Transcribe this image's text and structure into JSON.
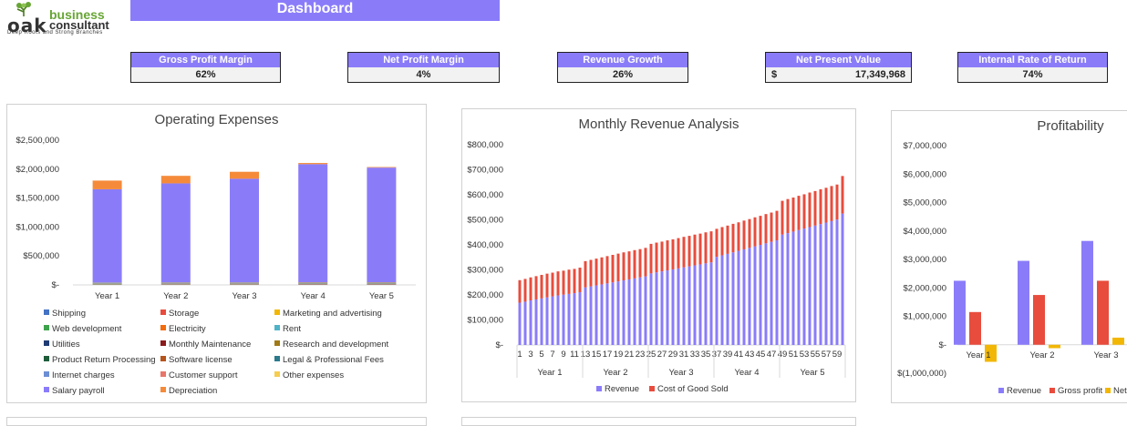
{
  "brand": {
    "logo_top": "oak",
    "logo_business": "business",
    "logo_consultant": "consultant",
    "logo_tagline": "Deep Roots and Strong Branches"
  },
  "header": {
    "title": "Dashboard",
    "accent_color": "#8a7cf9"
  },
  "kpis": {
    "gross_profit_margin": {
      "label": "Gross Profit Margin",
      "value": "62%"
    },
    "net_profit_margin": {
      "label": "Net Profit Margin",
      "value": "4%"
    },
    "revenue_growth": {
      "label": "Revenue Growth",
      "value": "26%"
    },
    "npv": {
      "label": "Net Present Value",
      "currency": "$",
      "value": "17,349,968"
    },
    "irr": {
      "label": "Internal Rate of Return",
      "value": "74%"
    }
  },
  "chart_data": [
    {
      "type": "bar",
      "stacked": true,
      "title": "Operating Expenses",
      "categories": [
        "Year 1",
        "Year 2",
        "Year 3",
        "Year 4",
        "Year 5"
      ],
      "y_ticks": [
        "$2,500,000",
        "$2,000,000",
        "$1,500,000",
        "$1,000,000",
        "$500,000",
        "$-"
      ],
      "ylim": [
        0,
        2500000
      ],
      "series": [
        {
          "name": "Shipping",
          "color": "#4472c4",
          "values": [
            5000,
            6000,
            6000,
            7000,
            7000
          ]
        },
        {
          "name": "Storage",
          "color": "#e84c3d",
          "values": [
            4000,
            5000,
            5000,
            6000,
            6000
          ]
        },
        {
          "name": "Marketing and advertising",
          "color": "#f2b705",
          "values": [
            3000,
            3000,
            3000,
            3000,
            3000
          ]
        },
        {
          "name": "Web development",
          "color": "#3fa34d",
          "values": [
            4000,
            4000,
            4000,
            4000,
            4000
          ]
        },
        {
          "name": "Electricity",
          "color": "#f26c0d",
          "values": [
            3000,
            3000,
            3000,
            3000,
            3000
          ]
        },
        {
          "name": "Rent",
          "color": "#4fb3c8",
          "values": [
            6000,
            6000,
            6000,
            6000,
            6000
          ]
        },
        {
          "name": "Utilities",
          "color": "#1f3b73",
          "values": [
            2000,
            2000,
            2000,
            2000,
            2000
          ]
        },
        {
          "name": "Monthly Maintenance",
          "color": "#8b1a1a",
          "values": [
            2000,
            2000,
            2000,
            2000,
            2000
          ]
        },
        {
          "name": "Research and development",
          "color": "#a07a16",
          "values": [
            3000,
            3000,
            3000,
            3000,
            3000
          ]
        },
        {
          "name": "Product Return Processing",
          "color": "#1e5c3a",
          "values": [
            2000,
            2000,
            2000,
            2000,
            2000
          ]
        },
        {
          "name": "Software license",
          "color": "#b5541c",
          "values": [
            2000,
            2000,
            2000,
            2000,
            2000
          ]
        },
        {
          "name": "Legal & Professional Fees",
          "color": "#2a7a8c",
          "values": [
            2000,
            2000,
            2000,
            2000,
            2000
          ]
        },
        {
          "name": "Internet charges",
          "color": "#6c8ed4",
          "values": [
            1000,
            1000,
            1000,
            1000,
            1000
          ]
        },
        {
          "name": "Customer support",
          "color": "#e8766a",
          "values": [
            2000,
            2000,
            2000,
            2000,
            2000
          ]
        },
        {
          "name": "Other expenses",
          "color": "#f5cd4f",
          "values": [
            1000,
            1000,
            1000,
            1000,
            1000
          ]
        },
        {
          "name": "Salary payroll",
          "color": "#8a7cf9",
          "values": [
            1610000,
            1710000,
            1790000,
            2040000,
            1980000
          ]
        },
        {
          "name": "Depreciation",
          "color": "#f58b3a",
          "values": [
            150000,
            130000,
            120000,
            20000,
            10000
          ]
        }
      ]
    },
    {
      "type": "bar",
      "stacked": true,
      "title": "Monthly Revenue Analysis",
      "x_labels": [
        "1",
        "3",
        "5",
        "7",
        "9",
        "11",
        "13",
        "15",
        "17",
        "19",
        "21",
        "23",
        "25",
        "27",
        "29",
        "31",
        "33",
        "35",
        "37",
        "39",
        "41",
        "43",
        "45",
        "47",
        "49",
        "51",
        "53",
        "55",
        "57",
        "59"
      ],
      "groups": [
        "Year 1",
        "Year 2",
        "Year 3",
        "Year 4",
        "Year 5"
      ],
      "y_ticks": [
        "$800,000",
        "$700,000",
        "$600,000",
        "$500,000",
        "$400,000",
        "$300,000",
        "$200,000",
        "$100,000",
        "$-"
      ],
      "ylim": [
        0,
        800000
      ],
      "series": [
        {
          "name": "Revenue",
          "color": "#8a7cf9",
          "values": [
            169000,
            173000,
            178000,
            182000,
            186000,
            190000,
            194000,
            198000,
            201000,
            204000,
            207000,
            211000,
            230000,
            234000,
            238000,
            242000,
            246000,
            250000,
            254000,
            258000,
            262000,
            266000,
            270000,
            274000,
            286000,
            290000,
            294000,
            298000,
            302000,
            306000,
            310000,
            314000,
            318000,
            322000,
            326000,
            330000,
            352000,
            358000,
            364000,
            370000,
            376000,
            382000,
            388000,
            394000,
            400000,
            406000,
            412000,
            418000,
            441000,
            447000,
            453000,
            459000,
            465000,
            471000,
            477000,
            483000,
            489000,
            495000,
            501000,
            525000
          ]
        },
        {
          "name": "Cost of Good Sold",
          "color": "#e84c3d",
          "values": [
            90000,
            91000,
            92000,
            93000,
            94000,
            95000,
            95000,
            96000,
            96000,
            97000,
            97000,
            98000,
            105000,
            106000,
            107000,
            108000,
            109000,
            110000,
            111000,
            112000,
            112000,
            113000,
            113000,
            114000,
            118000,
            119000,
            119000,
            120000,
            120000,
            121000,
            122000,
            122000,
            123000,
            123000,
            124000,
            124000,
            112000,
            113000,
            113000,
            114000,
            114000,
            115000,
            115000,
            116000,
            116000,
            117000,
            117000,
            118000,
            135000,
            136000,
            136000,
            137000,
            137000,
            138000,
            138000,
            139000,
            139000,
            140000,
            140000,
            150000
          ]
        }
      ]
    },
    {
      "type": "bar",
      "title": "Profitability",
      "categories": [
        "Year 1",
        "Year 2",
        "Year 3"
      ],
      "y_ticks": [
        "$7,000,000",
        "$6,000,000",
        "$5,000,000",
        "$4,000,000",
        "$3,000,000",
        "$2,000,000",
        "$1,000,000",
        "$-",
        "$(1,000,000)"
      ],
      "ylim": [
        -1000000,
        7000000
      ],
      "series": [
        {
          "name": "Revenue",
          "color": "#8a7cf9",
          "values": [
            2250000,
            2950000,
            3650000
          ]
        },
        {
          "name": "Gross profit",
          "color": "#e84c3d",
          "values": [
            1150000,
            1750000,
            2250000
          ]
        },
        {
          "name": "Net profit",
          "color": "#f2b705",
          "values": [
            -600000,
            -120000,
            250000
          ]
        }
      ]
    }
  ]
}
